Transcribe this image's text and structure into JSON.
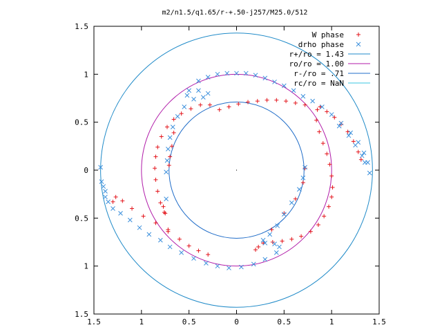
{
  "chart_data": {
    "type": "scatter",
    "title": "m2/n1.5/q1.65/r-+.50-j257/M25.0/512",
    "xlim": [
      -1.5,
      1.5
    ],
    "ylim": [
      -1.5,
      1.5
    ],
    "x_tick_values": [
      -1.5,
      -1,
      -0.5,
      0,
      0.5,
      1,
      1.5
    ],
    "x_tick_labels": [
      "1.5",
      "1",
      "0.5",
      "0",
      "0.5",
      "1",
      "1.5"
    ],
    "y_tick_values": [
      1.5,
      1,
      0.5,
      0,
      -0.5,
      -1,
      -1.5
    ],
    "y_tick_labels": [
      "1.5",
      "1",
      "0.5",
      "0",
      "0.5",
      "1",
      "1.5"
    ],
    "grid": false,
    "legend_position": "top-right",
    "legend": [
      {
        "label": "W phase",
        "kind": "marker",
        "marker": "plus",
        "color": "#e3141b"
      },
      {
        "label": "drho phase",
        "kind": "marker",
        "marker": "cross",
        "color": "#3b8fdc"
      },
      {
        "label": "r+/ro = 1.43",
        "kind": "line",
        "color": "#1f8ac8"
      },
      {
        "label": "ro/ro = 1.00",
        "kind": "line",
        "color": "#b01aa8"
      },
      {
        "label": "r-/ro = .71",
        "kind": "line",
        "color": "#1f6cc8"
      },
      {
        "label": "rc/ro = NaN",
        "kind": "line",
        "color": "#38c6e0"
      }
    ],
    "circles": [
      {
        "name": "r+/ro",
        "radius": 1.43,
        "color": "#1f8ac8"
      },
      {
        "name": "ro/ro",
        "radius": 1.0,
        "color": "#b01aa8"
      },
      {
        "name": "r-/ro",
        "radius": 0.71,
        "color": "#1f6cc8"
      }
    ],
    "series": [
      {
        "name": "W phase",
        "marker": "plus",
        "color": "#e3141b",
        "points": [
          [
            0.72,
            0.68
          ],
          [
            0.62,
            0.7
          ],
          [
            0.52,
            0.72
          ],
          [
            0.42,
            0.73
          ],
          [
            0.32,
            0.73
          ],
          [
            0.22,
            0.72
          ],
          [
            0.12,
            0.71
          ],
          [
            0.02,
            0.69
          ],
          [
            -0.08,
            0.66
          ],
          [
            -0.18,
            0.63
          ],
          [
            -0.28,
            0.68
          ],
          [
            -0.38,
            0.68
          ],
          [
            -0.48,
            0.64
          ],
          [
            -0.58,
            0.59
          ],
          [
            -0.66,
            0.53
          ],
          [
            -0.73,
            0.45
          ],
          [
            -0.79,
            0.35
          ],
          [
            -0.83,
            0.24
          ],
          [
            -0.85,
            0.14
          ],
          [
            -0.86,
            0.02
          ],
          [
            -0.85,
            -0.1
          ],
          [
            -0.83,
            -0.22
          ],
          [
            -0.8,
            -0.34
          ],
          [
            -0.75,
            -0.45
          ],
          [
            -0.72,
            -0.62
          ],
          [
            -0.85,
            -0.55
          ],
          [
            -0.98,
            -0.48
          ],
          [
            -1.1,
            -0.4
          ],
          [
            -1.2,
            -0.32
          ],
          [
            -1.27,
            -0.28
          ],
          [
            -1.3,
            -0.33
          ],
          [
            -0.72,
            -0.64
          ],
          [
            -0.6,
            -0.72
          ],
          [
            -0.5,
            -0.79
          ],
          [
            -0.4,
            -0.84
          ],
          [
            -0.3,
            -0.88
          ],
          [
            0.28,
            -0.76
          ],
          [
            0.38,
            -0.75
          ],
          [
            0.48,
            -0.74
          ],
          [
            0.58,
            -0.72
          ],
          [
            0.68,
            -0.69
          ],
          [
            0.78,
            -0.64
          ],
          [
            0.86,
            -0.57
          ],
          [
            0.92,
            -0.48
          ],
          [
            0.97,
            -0.38
          ],
          [
            1.0,
            -0.28
          ],
          [
            1.01,
            -0.18
          ],
          [
            1.0,
            -0.06
          ],
          [
            0.98,
            0.06
          ],
          [
            0.95,
            0.17
          ],
          [
            0.91,
            0.28
          ],
          [
            0.87,
            0.4
          ],
          [
            0.84,
            0.52
          ],
          [
            0.85,
            0.63
          ],
          [
            0.88,
            0.66
          ],
          [
            0.95,
            0.61
          ],
          [
            1.03,
            0.55
          ],
          [
            1.1,
            0.48
          ],
          [
            1.17,
            0.4
          ],
          [
            1.23,
            0.3
          ],
          [
            1.28,
            0.19
          ],
          [
            1.31,
            0.11
          ],
          [
            -0.76,
            -0.44
          ],
          [
            -0.77,
            -0.38
          ],
          [
            -0.68,
            0.25
          ],
          [
            -0.66,
            0.39
          ],
          [
            0.2,
            -0.83
          ],
          [
            0.23,
            -0.8
          ],
          [
            0.37,
            -0.62
          ],
          [
            0.5,
            -0.45
          ],
          [
            0.62,
            -0.3
          ],
          [
            0.7,
            -0.13
          ],
          [
            0.72,
            0.02
          ],
          [
            -0.71,
            0.05
          ],
          [
            -0.7,
            0.14
          ]
        ]
      },
      {
        "name": "drho phase",
        "marker": "cross",
        "color": "#3b8fdc",
        "points": [
          [
            -0.5,
            0.83
          ],
          [
            -0.4,
            0.93
          ],
          [
            -0.3,
            0.97
          ],
          [
            -0.2,
            1.0
          ],
          [
            -0.1,
            1.01
          ],
          [
            0.0,
            1.01
          ],
          [
            0.1,
            1.01
          ],
          [
            0.2,
            0.99
          ],
          [
            0.3,
            0.96
          ],
          [
            0.4,
            0.92
          ],
          [
            0.5,
            0.88
          ],
          [
            0.6,
            0.83
          ],
          [
            0.7,
            0.77
          ],
          [
            0.8,
            0.72
          ],
          [
            0.9,
            0.66
          ],
          [
            1.0,
            0.58
          ],
          [
            1.1,
            0.49
          ],
          [
            1.2,
            0.39
          ],
          [
            1.28,
            0.29
          ],
          [
            1.34,
            0.18
          ],
          [
            1.38,
            0.08
          ],
          [
            1.4,
            -0.03
          ],
          [
            -0.52,
            0.78
          ],
          [
            -0.4,
            0.83
          ],
          [
            -0.3,
            0.8
          ],
          [
            -0.35,
            0.76
          ],
          [
            -0.45,
            0.74
          ],
          [
            -0.55,
            0.66
          ],
          [
            -0.62,
            0.56
          ],
          [
            -0.67,
            0.45
          ],
          [
            -0.7,
            0.34
          ],
          [
            -0.72,
            0.22
          ],
          [
            -0.73,
            0.1
          ],
          [
            -0.74,
            -0.02
          ],
          [
            -1.43,
            0.03
          ],
          [
            -1.42,
            -0.12
          ],
          [
            -1.38,
            -0.22
          ],
          [
            -1.35,
            -0.33
          ],
          [
            -1.3,
            -0.4
          ],
          [
            -1.22,
            -0.45
          ],
          [
            -1.12,
            -0.52
          ],
          [
            -1.02,
            -0.6
          ],
          [
            -0.92,
            -0.67
          ],
          [
            -0.8,
            -0.73
          ],
          [
            -0.7,
            -0.8
          ],
          [
            -0.58,
            -0.86
          ],
          [
            -0.45,
            -0.92
          ],
          [
            -0.32,
            -0.97
          ],
          [
            -0.2,
            -1.0
          ],
          [
            -0.08,
            -1.02
          ],
          [
            0.05,
            -1.01
          ],
          [
            0.18,
            -0.98
          ],
          [
            0.3,
            -0.93
          ],
          [
            0.42,
            -0.86
          ],
          [
            0.45,
            -0.8
          ],
          [
            0.4,
            -0.77
          ],
          [
            0.3,
            -0.76
          ],
          [
            0.28,
            -0.73
          ],
          [
            0.35,
            -0.67
          ],
          [
            0.43,
            -0.58
          ],
          [
            0.5,
            -0.46
          ],
          [
            0.58,
            -0.34
          ],
          [
            0.66,
            -0.2
          ],
          [
            0.7,
            -0.08
          ],
          [
            0.72,
            0.03
          ],
          [
            1.35,
            0.08
          ],
          [
            1.32,
            0.15
          ],
          [
            1.25,
            0.26
          ],
          [
            1.18,
            0.36
          ],
          [
            1.08,
            0.46
          ],
          [
            -1.4,
            -0.17
          ],
          [
            -1.38,
            -0.28
          ],
          [
            -0.74,
            -0.3
          ]
        ]
      }
    ]
  }
}
